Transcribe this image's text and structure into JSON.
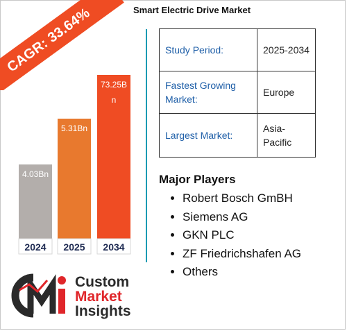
{
  "title": "Smart Electric Drive Market",
  "cagr_label": "CAGR: 33.64%",
  "chart_data": {
    "type": "bar",
    "categories": [
      "2024",
      "2025",
      "2034"
    ],
    "values": [
      4.03,
      5.31,
      73.25
    ],
    "value_labels": [
      "4.03Bn",
      "5.31Bn",
      "73.25Bn"
    ],
    "bar_colors": [
      "#b3aeab",
      "#e8792e",
      "#ef4c23"
    ],
    "title": "",
    "xlabel": "",
    "ylabel": ""
  },
  "info": {
    "rows": [
      {
        "key": "Study Period:",
        "value": "2025-2034"
      },
      {
        "key": "Fastest Growing Market:",
        "value": "Europe"
      },
      {
        "key": "Largest Market:",
        "value": "Asia-Pacific"
      }
    ]
  },
  "players": {
    "title": "Major Players",
    "items": [
      "Robert Bosch GmBH",
      "Siemens AG",
      "GKN PLC",
      "ZF Friedrichshafen AG",
      "Others"
    ]
  },
  "logo": {
    "line1": "Custom",
    "line2": "Market",
    "line3": "Insights",
    "icon": "cmi-logo-icon"
  },
  "colors": {
    "accent_red": "#ef4c23",
    "accent_orange": "#e8792e",
    "accent_grey": "#b3aeab",
    "divider_teal": "#1b9bb3",
    "key_blue": "#1f5fa8",
    "year_navy": "#1e2a52"
  }
}
